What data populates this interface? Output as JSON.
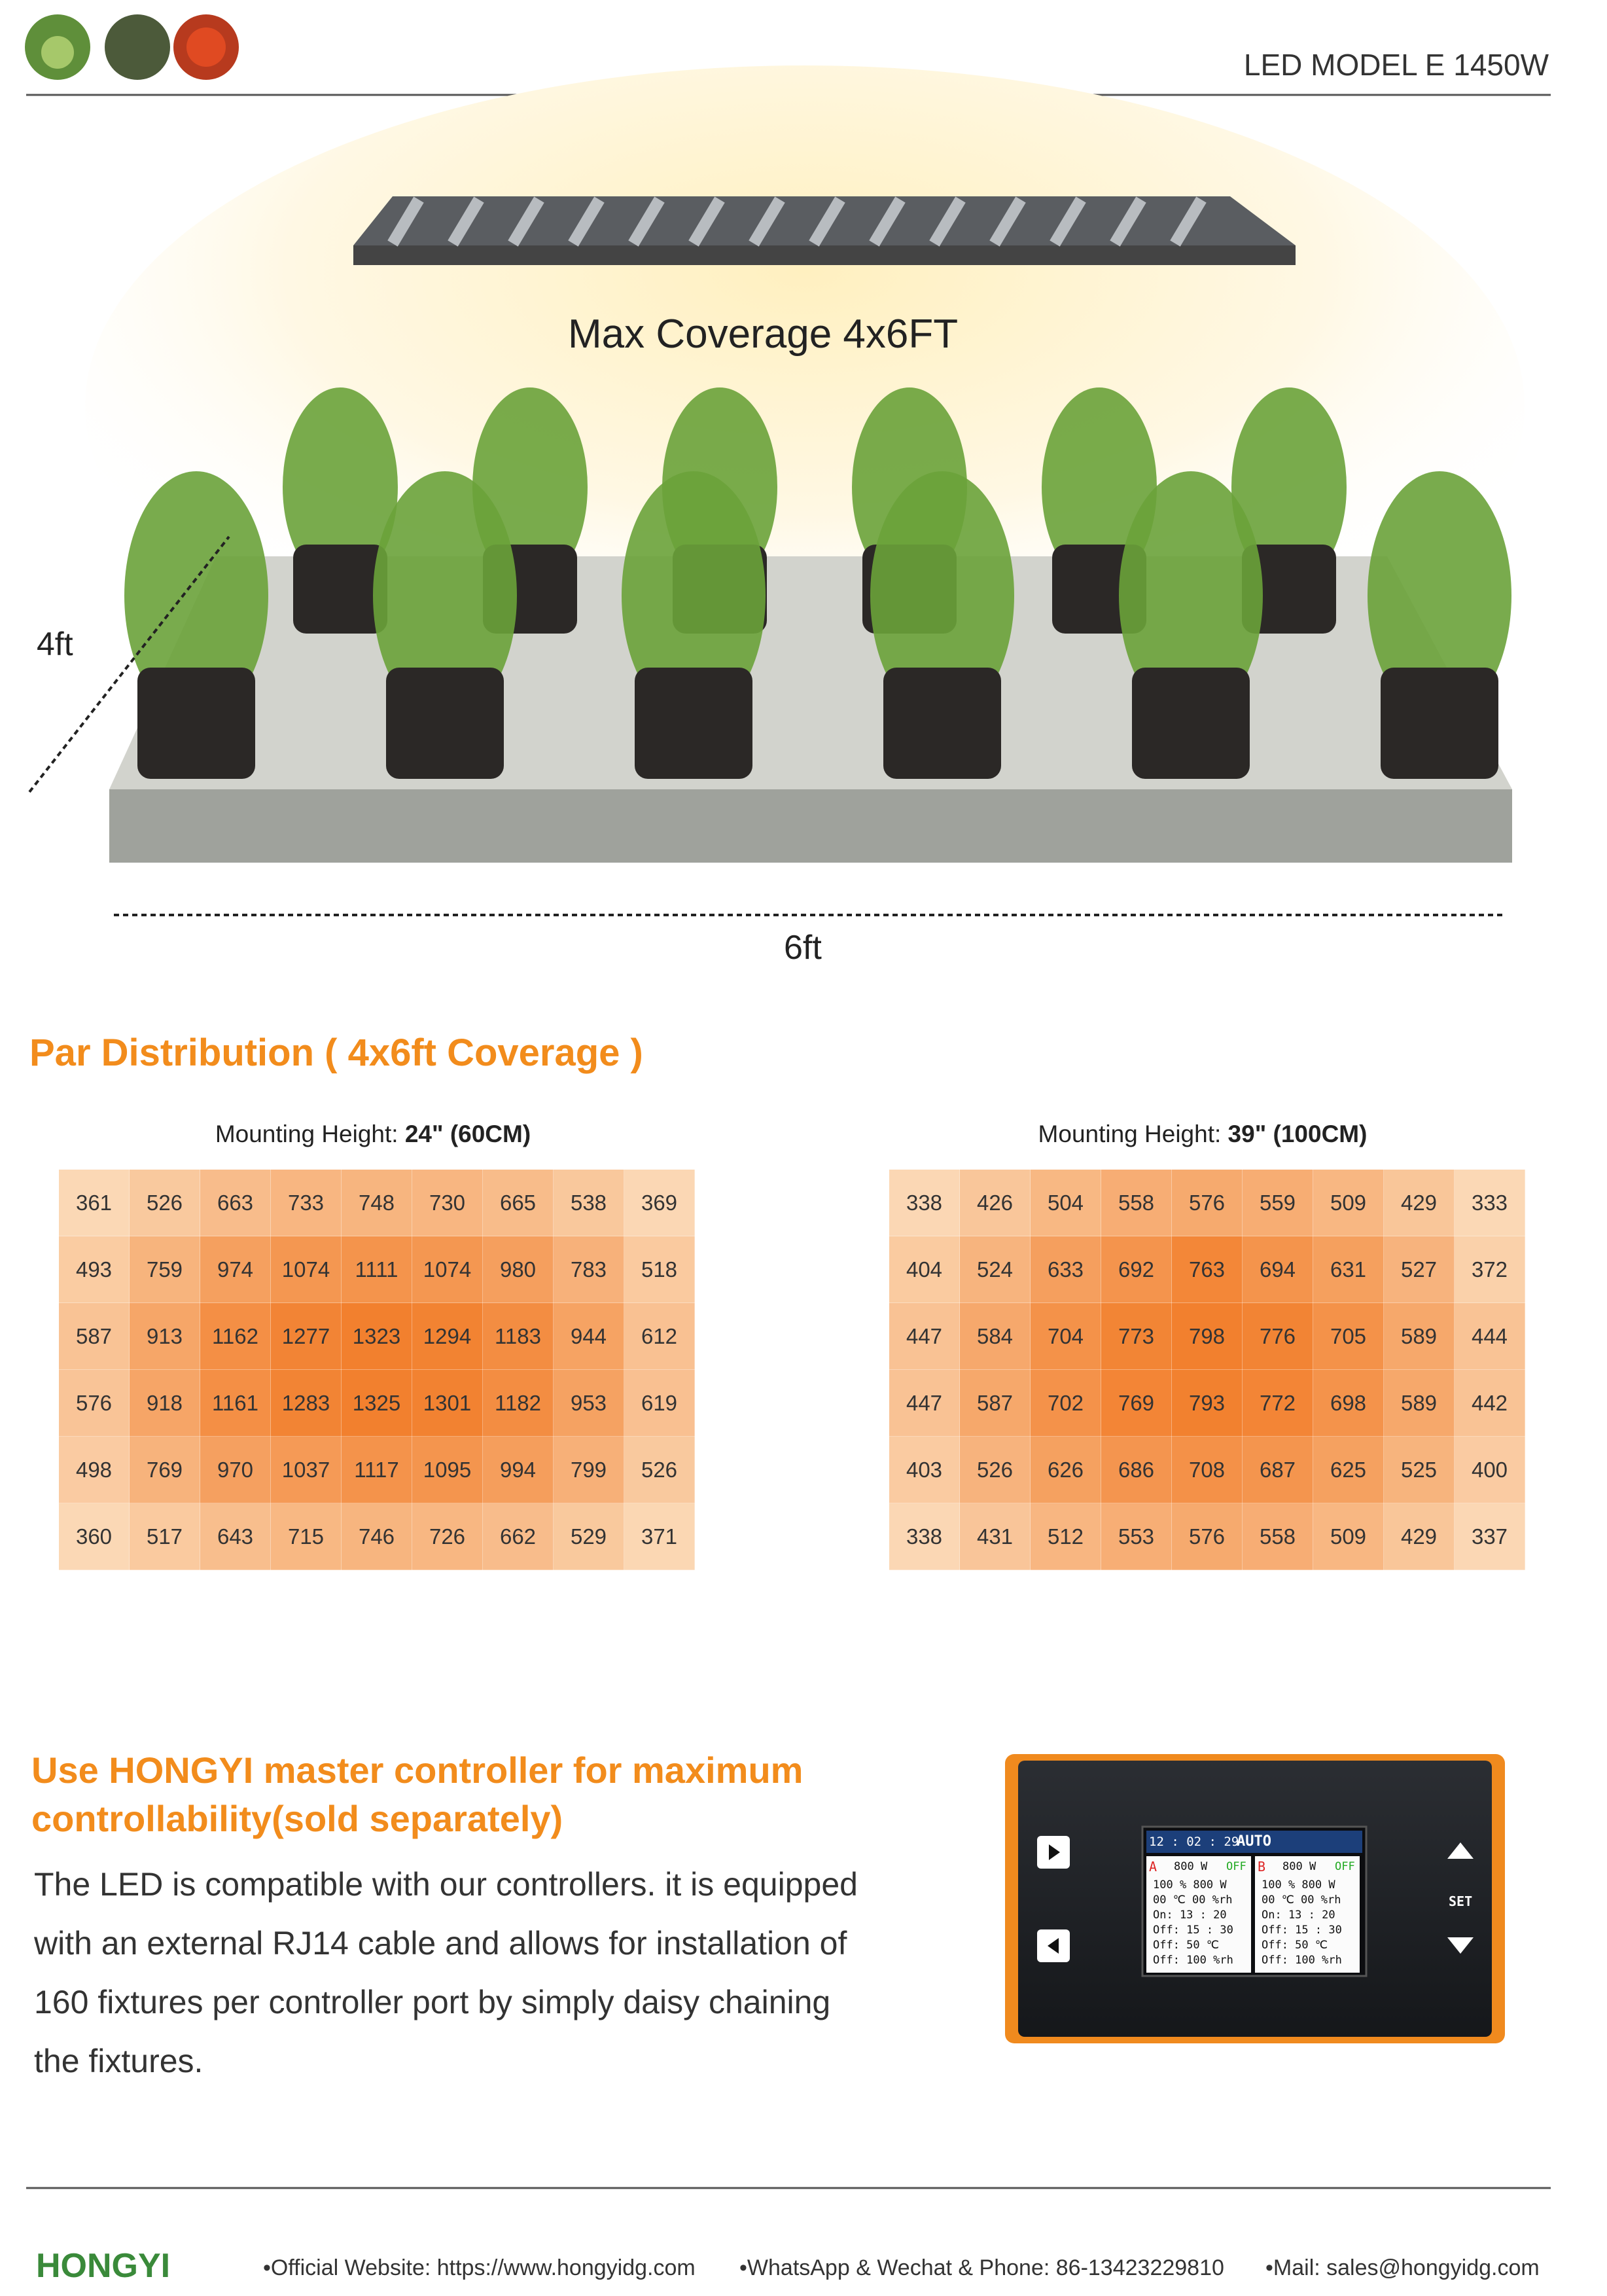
{
  "header": {
    "title": "LED MODEL E 1450W"
  },
  "hero": {
    "caption": "Max Coverage 4x6FT",
    "depth_label": "4ft",
    "width_label": "6ft"
  },
  "par_section": {
    "title": "Par Distribution ( 4x6ft Coverage )",
    "tables": [
      {
        "label": "Mounting Height: ",
        "height": "24\" (60CM)",
        "rows": [
          [
            361,
            526,
            663,
            733,
            748,
            730,
            665,
            538,
            369
          ],
          [
            493,
            759,
            974,
            1074,
            1111,
            1074,
            980,
            783,
            518
          ],
          [
            587,
            913,
            1162,
            1277,
            1323,
            1294,
            1183,
            944,
            612
          ],
          [
            576,
            918,
            1161,
            1283,
            1325,
            1301,
            1182,
            953,
            619
          ],
          [
            498,
            769,
            970,
            1037,
            1117,
            1095,
            994,
            799,
            526
          ],
          [
            360,
            517,
            643,
            715,
            746,
            726,
            662,
            529,
            371
          ]
        ]
      },
      {
        "label": "Mounting Height: ",
        "height": "39\" (100CM)",
        "rows": [
          [
            338,
            426,
            504,
            558,
            576,
            559,
            509,
            429,
            333
          ],
          [
            404,
            524,
            633,
            692,
            763,
            694,
            631,
            527,
            372
          ],
          [
            447,
            584,
            704,
            773,
            798,
            776,
            705,
            589,
            444
          ],
          [
            447,
            587,
            702,
            769,
            793,
            772,
            698,
            589,
            442
          ],
          [
            403,
            526,
            626,
            686,
            708,
            687,
            625,
            525,
            400
          ],
          [
            338,
            431,
            512,
            553,
            576,
            558,
            509,
            429,
            337
          ]
        ]
      }
    ]
  },
  "controller_section": {
    "title_lines": [
      "Use HONGYI master controller for maximum",
      "controllability(sold separately)"
    ],
    "paragraph_lines": [
      "The LED is compatible with our controllers. it is equipped",
      "with an external RJ14 cable and allows for installation of",
      "160 fixtures per controller port by simply daisy chaining",
      "the fixtures."
    ],
    "screen": {
      "time": "12 : 02 : 29",
      "mode": "AUTO",
      "set_button": "SET",
      "channels": [
        {
          "name": "A",
          "power": "800 W",
          "state": "OFF",
          "lines": [
            "100 %  800 W",
            "00 ℃  00 %rh",
            "On: 13 : 20",
            "Off: 15 : 30",
            "Off: 50 ℃",
            "Off: 100 %rh"
          ]
        },
        {
          "name": "B",
          "power": "800 W",
          "state": "OFF",
          "lines": [
            "100 %  800 W",
            "00 ℃  00 %rh",
            "On: 13 : 20",
            "Off: 15 : 30",
            "Off: 50 ℃",
            "Off: 100 %rh"
          ]
        }
      ]
    }
  },
  "footer": {
    "logo": "HONGYI",
    "items": [
      "•Official Website: https://www.hongyidg.com",
      "•WhatsApp & Wechat & Phone: 86-13423229810",
      "•Mail: sales@hongyidg.com"
    ]
  }
}
